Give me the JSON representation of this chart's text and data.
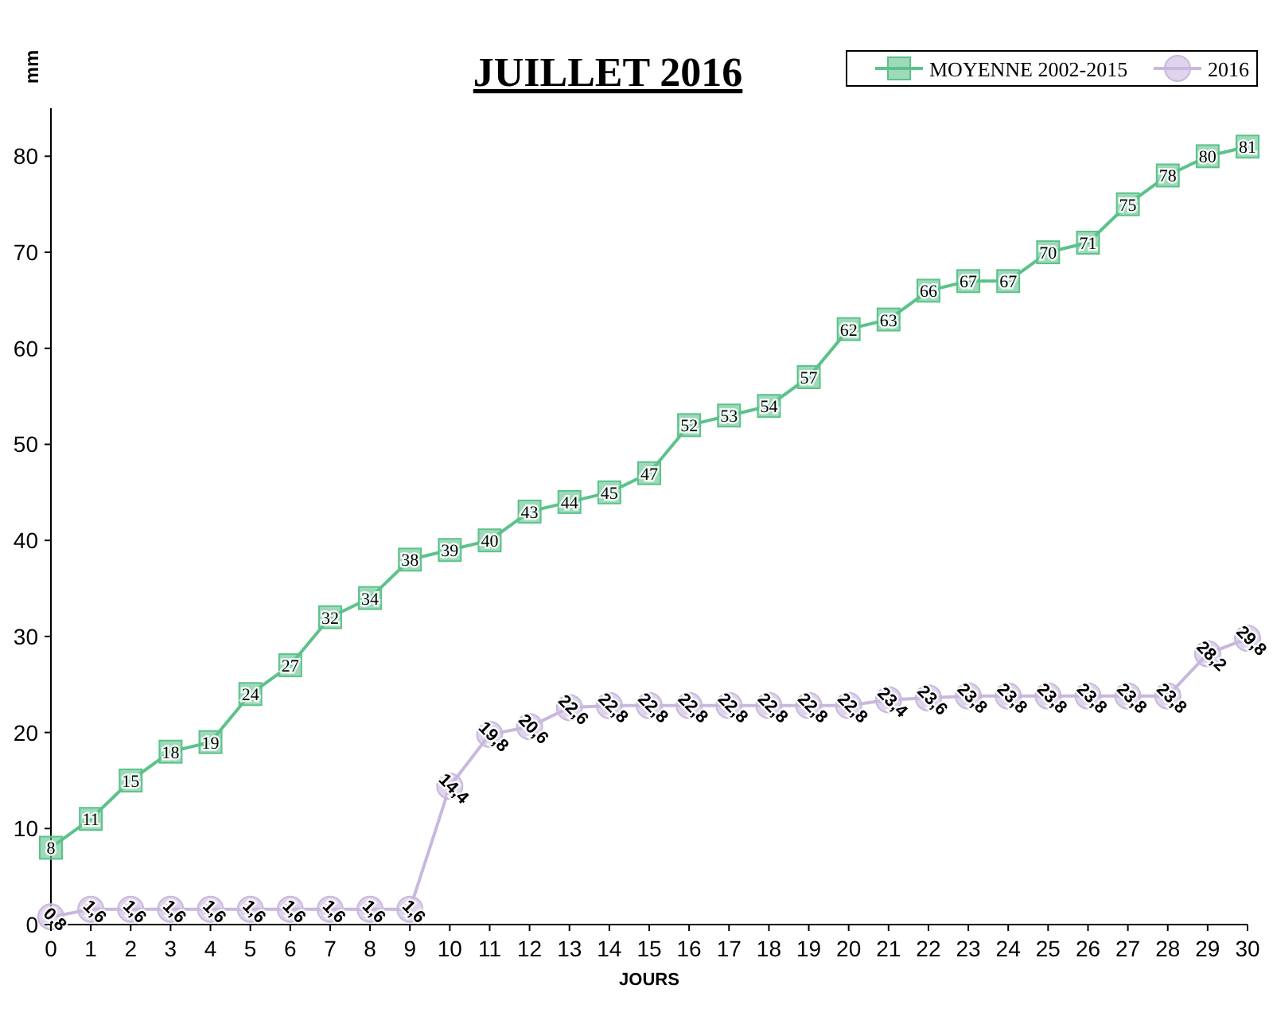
{
  "chart_data": {
    "type": "line",
    "title": "JUILLET 2016",
    "xlabel": "JOURS",
    "ylabel": "mm",
    "x": [
      0,
      1,
      2,
      3,
      4,
      5,
      6,
      7,
      8,
      9,
      10,
      11,
      12,
      13,
      14,
      15,
      16,
      17,
      18,
      19,
      20,
      21,
      22,
      23,
      24,
      25,
      26,
      27,
      28,
      29,
      30
    ],
    "xlim": [
      0,
      30
    ],
    "xticks": [
      0,
      1,
      2,
      3,
      4,
      5,
      6,
      7,
      8,
      9,
      10,
      11,
      12,
      13,
      14,
      15,
      16,
      17,
      18,
      19,
      20,
      21,
      22,
      23,
      24,
      25,
      26,
      27,
      28,
      29,
      30
    ],
    "ylim": [
      0,
      85
    ],
    "yticks": [
      0,
      10,
      20,
      30,
      40,
      50,
      60,
      70,
      80
    ],
    "grid": false,
    "legend": "top right",
    "series": [
      {
        "name": "MOYENNE 2002-2015",
        "color": "#5cc28a",
        "marker": "square",
        "values": [
          8,
          11,
          15,
          18,
          19,
          24,
          27,
          32,
          34,
          38,
          39,
          40,
          43,
          44,
          45,
          47,
          52,
          53,
          54,
          57,
          62,
          63,
          66,
          67,
          67,
          70,
          71,
          75,
          78,
          80,
          81
        ]
      },
      {
        "name": "2016",
        "color": "#c9b8dd",
        "marker": "circle",
        "values": [
          0.8,
          1.6,
          1.6,
          1.6,
          1.6,
          1.6,
          1.6,
          1.6,
          1.6,
          1.6,
          14.4,
          19.8,
          20.6,
          22.6,
          22.8,
          22.8,
          22.8,
          22.8,
          22.8,
          22.8,
          22.8,
          23.4,
          23.6,
          23.8,
          23.8,
          23.8,
          23.8,
          23.8,
          23.8,
          28.2,
          29.8
        ],
        "value_labels": [
          "0,8",
          "1,6",
          "1,6",
          "1,6",
          "1,6",
          "1,6",
          "1,6",
          "1,6",
          "1,6",
          "1,6",
          "14,4",
          "19,8",
          "20,6",
          "22,6",
          "22,8",
          "22,8",
          "22,8",
          "22,8",
          "22,8",
          "22,8",
          "22,8",
          "23,4",
          "23,6",
          "23,8",
          "23,8",
          "23,8",
          "23,8",
          "23,8",
          "23,8",
          "28,2",
          "29,8"
        ]
      }
    ],
    "data_labels": true
  }
}
